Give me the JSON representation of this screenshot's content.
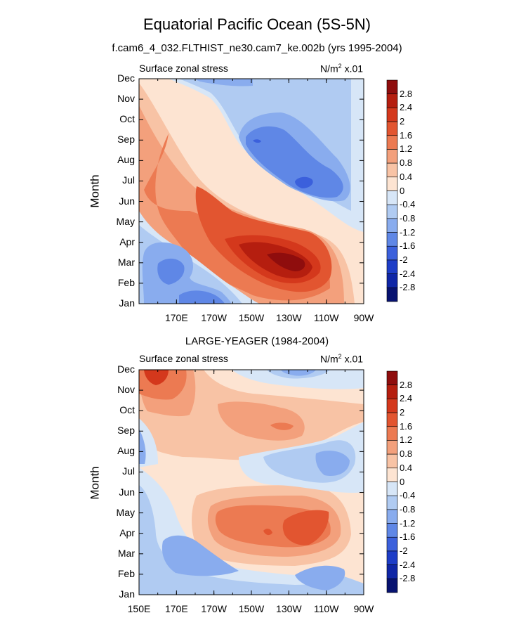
{
  "title": "Equatorial Pacific Ocean (5S-5N)",
  "subtitle": "f.cam6_4_032.FLTHIST_ne30.cam7_ke.002b (yrs 1995-2004)",
  "colorbar": {
    "labels": [
      "2.8",
      "2.4",
      "2",
      "1.6",
      "1.2",
      "0.8",
      "0.4",
      "0",
      "-0.4",
      "-0.8",
      "-1.2",
      "-1.6",
      "-2",
      "-2.4",
      "-2.8"
    ],
    "colors": [
      "#8f0d0d",
      "#b51e0f",
      "#d4381c",
      "#e25530",
      "#ec7a52",
      "#f3a07c",
      "#f8c3a5",
      "#fde4d2",
      "#d7e6f7",
      "#b0cbf2",
      "#89acee",
      "#5f87e6",
      "#3b60dc",
      "#1d3dc7",
      "#0f26a6",
      "#071270"
    ]
  },
  "chart_data": [
    {
      "type": "heatmap",
      "panel": "model",
      "title": "",
      "left_label": "Surface zonal stress",
      "right_label_base": "N/m",
      "right_label_sup": "2",
      "right_label_tail": " x.01",
      "ylabel": "Month",
      "yticks": [
        "Dec",
        "Nov",
        "Oct",
        "Sep",
        "Aug",
        "Jul",
        "Jun",
        "May",
        "Apr",
        "Mar",
        "Feb",
        "Jan"
      ],
      "xticks": [
        "170E",
        "170W",
        "150W",
        "130W",
        "110W",
        "90W"
      ],
      "xlim": [
        150,
        270
      ],
      "ylim": [
        1,
        12
      ],
      "features": [
        {
          "kind": "diagonal_positive_band",
          "from": {
            "lon": 160,
            "month": 12
          },
          "to": {
            "lon": 255,
            "month": 1
          }
        },
        {
          "kind": "max",
          "lon": 232,
          "month": 3.2,
          "value": 2.8
        },
        {
          "kind": "min",
          "lon": 238,
          "month": 6.9,
          "value": -2.0
        },
        {
          "kind": "min",
          "lon": 212,
          "month": 9.0,
          "value": -1.6
        },
        {
          "kind": "min",
          "lon": 166,
          "month": 2.7,
          "value": -1.6
        },
        {
          "kind": "min",
          "lon": 192,
          "month": 1.3,
          "value": -1.6
        },
        {
          "kind": "min",
          "lon": 185,
          "month": 12.0,
          "value": -1.2
        }
      ]
    },
    {
      "type": "heatmap",
      "panel": "observations",
      "title": "LARGE-YEAGER (1984-2004)",
      "left_label": "Surface zonal stress",
      "right_label_base": "N/m",
      "right_label_sup": "2",
      "right_label_tail": " x.01",
      "ylabel": "Month",
      "yticks": [
        "Dec",
        "Nov",
        "Oct",
        "Sep",
        "Aug",
        "Jul",
        "Jun",
        "May",
        "Apr",
        "Mar",
        "Feb",
        "Jan"
      ],
      "xticks": [
        "150E",
        "170E",
        "170W",
        "150W",
        "130W",
        "110W",
        "90W"
      ],
      "xlim": [
        150,
        270
      ],
      "ylim": [
        1,
        12
      ],
      "features": [
        {
          "kind": "max",
          "lon": 157,
          "month": 11.6,
          "value": 2.0
        },
        {
          "kind": "max",
          "lon": 232,
          "month": 4.2,
          "value": 1.6
        },
        {
          "kind": "max",
          "lon": 212,
          "month": 4.2,
          "value": 1.2
        },
        {
          "kind": "max",
          "lon": 225,
          "month": 9.5,
          "value": 1.2
        },
        {
          "kind": "min",
          "lon": 220,
          "month": 11.7,
          "value": -1.2
        },
        {
          "kind": "min",
          "lon": 250,
          "month": 7.0,
          "value": -1.2
        },
        {
          "kind": "min",
          "lon": 180,
          "month": 2.0,
          "value": -1.2
        },
        {
          "kind": "min",
          "lon": 238,
          "month": 1.8,
          "value": -1.2
        }
      ]
    }
  ]
}
